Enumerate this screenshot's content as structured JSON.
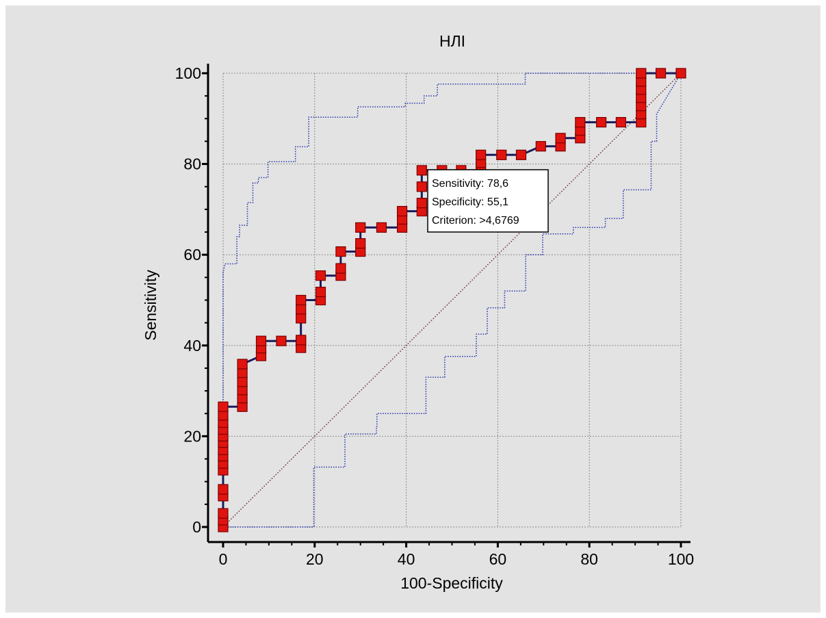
{
  "chart_data": {
    "type": "line",
    "title": "НЛІ",
    "xlabel": "100-Specificity",
    "ylabel": "Sensitivity",
    "xlim": [
      0,
      100
    ],
    "ylim": [
      0,
      100
    ],
    "x_ticks": [
      "0",
      "20",
      "40",
      "60",
      "80",
      "100"
    ],
    "y_ticks": [
      "0",
      "20",
      "40",
      "60",
      "80",
      "100"
    ],
    "grid": true,
    "colors": {
      "roc_line": "#1a1a5e",
      "marker_fill": "#e0140f",
      "marker_edge": "#7a0000",
      "ci_line": "#2233aa",
      "diagonal": "#6b2a2a",
      "background": "#e3e3e3"
    },
    "series": [
      {
        "points": [
          [
            0,
            0
          ],
          [
            0,
            1.5
          ],
          [
            0,
            3
          ],
          [
            0,
            6.8
          ],
          [
            0,
            8.3
          ],
          [
            0,
            12.5
          ],
          [
            0,
            14
          ],
          [
            0,
            15.6
          ],
          [
            0,
            17
          ],
          [
            0,
            18.6
          ],
          [
            0,
            20
          ],
          [
            0,
            21.5
          ],
          [
            0,
            23
          ],
          [
            0,
            24.6
          ],
          [
            0,
            26.5
          ],
          [
            4.2,
            26.5
          ],
          [
            4.2,
            28.4
          ],
          [
            4.2,
            30.2
          ],
          [
            4.2,
            32
          ],
          [
            4.2,
            34
          ],
          [
            4.2,
            35.9
          ],
          [
            8.3,
            37.7
          ],
          [
            8.3,
            39.4
          ],
          [
            8.3,
            41
          ],
          [
            12.7,
            41
          ],
          [
            17,
            41
          ],
          [
            17,
            39.5
          ],
          [
            17,
            41.2
          ],
          [
            17,
            46
          ],
          [
            17,
            48
          ],
          [
            17,
            50
          ],
          [
            21.3,
            50
          ],
          [
            21.3,
            51.8
          ],
          [
            21.3,
            55.4
          ],
          [
            25.7,
            55.4
          ],
          [
            25.7,
            57
          ],
          [
            25.7,
            60.7
          ],
          [
            30,
            60.7
          ],
          [
            30,
            62.5
          ],
          [
            30,
            66
          ],
          [
            34.6,
            66
          ],
          [
            39.1,
            66
          ],
          [
            39.1,
            67.8
          ],
          [
            39.1,
            69.6
          ],
          [
            43.4,
            69.6
          ],
          [
            43.4,
            71.4
          ],
          [
            43.4,
            75
          ],
          [
            43.4,
            78.6
          ],
          [
            47.8,
            78.6
          ],
          [
            52,
            78.6
          ],
          [
            56.3,
            78.6
          ],
          [
            56.3,
            80.3
          ],
          [
            56.3,
            82
          ],
          [
            60.8,
            82
          ],
          [
            65.1,
            82
          ],
          [
            69.4,
            83.9
          ],
          [
            73.7,
            83.9
          ],
          [
            73.7,
            85.7
          ],
          [
            78,
            85.7
          ],
          [
            78,
            87.4
          ],
          [
            78,
            89.2
          ],
          [
            82.6,
            89.2
          ],
          [
            86.9,
            89.2
          ],
          [
            91.3,
            89.2
          ],
          [
            91.3,
            91
          ],
          [
            91.3,
            92.8
          ],
          [
            91.3,
            94.6
          ],
          [
            91.3,
            96.4
          ],
          [
            91.3,
            98.2
          ],
          [
            91.3,
            100
          ],
          [
            95.6,
            100
          ],
          [
            100,
            100
          ]
        ]
      }
    ],
    "ci_upper": [
      [
        0,
        0
      ],
      [
        0,
        53
      ],
      [
        0,
        56
      ],
      [
        0.4,
        58
      ],
      [
        3,
        58
      ],
      [
        3,
        64
      ],
      [
        3.6,
        64
      ],
      [
        3.6,
        66.5
      ],
      [
        5.3,
        66.5
      ],
      [
        5.3,
        71.5
      ],
      [
        6.5,
        71.5
      ],
      [
        6.5,
        75.8
      ],
      [
        7.7,
        75.8
      ],
      [
        7.7,
        77
      ],
      [
        9.8,
        77
      ],
      [
        9.8,
        80.5
      ],
      [
        15.8,
        80.5
      ],
      [
        15.8,
        83.8
      ],
      [
        18.7,
        83.8
      ],
      [
        18.7,
        90.3
      ],
      [
        29.4,
        90.3
      ],
      [
        29.4,
        92.6
      ],
      [
        39.8,
        92.6
      ],
      [
        39.8,
        93.4
      ],
      [
        43.9,
        93.4
      ],
      [
        43.9,
        95
      ],
      [
        46.8,
        95
      ],
      [
        46.8,
        97.6
      ],
      [
        66,
        97.6
      ],
      [
        66,
        100
      ],
      [
        100,
        100
      ]
    ],
    "ci_lower": [
      [
        0,
        0
      ],
      [
        19.8,
        0
      ],
      [
        19.8,
        13.2
      ],
      [
        26.6,
        13.2
      ],
      [
        26.6,
        20.5
      ],
      [
        33.5,
        20.5
      ],
      [
        33.5,
        22
      ],
      [
        33.6,
        22
      ],
      [
        33.6,
        25
      ],
      [
        44.3,
        25
      ],
      [
        44.3,
        33
      ],
      [
        48.4,
        33
      ],
      [
        48.4,
        37.6
      ],
      [
        55.3,
        37.6
      ],
      [
        55.3,
        42.5
      ],
      [
        57.7,
        42.5
      ],
      [
        57.7,
        48.3
      ],
      [
        61.5,
        48.3
      ],
      [
        61.5,
        52
      ],
      [
        66.1,
        52
      ],
      [
        66.1,
        60
      ],
      [
        69.8,
        60
      ],
      [
        69.8,
        64.6
      ],
      [
        76.5,
        64.6
      ],
      [
        76.5,
        66
      ],
      [
        83.5,
        66
      ],
      [
        83.5,
        68
      ],
      [
        87.4,
        68
      ],
      [
        87.4,
        74.3
      ],
      [
        93.5,
        74.3
      ],
      [
        93.5,
        85
      ],
      [
        94.7,
        85
      ],
      [
        94.7,
        91
      ],
      [
        100,
        100
      ]
    ],
    "annotation": {
      "lines": [
        "Sensitivity: 78,6",
        "Specificity: 55,1",
        "Criterion: >4,6769"
      ]
    }
  }
}
